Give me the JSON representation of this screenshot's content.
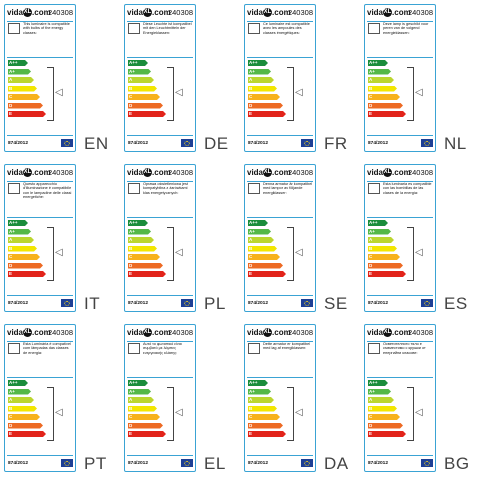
{
  "brand": {
    "name_left": "vida",
    "name_mid": "XL",
    "name_right": ".com"
  },
  "model_number": "240308",
  "regulation": "874/2012",
  "energy_classes": [
    {
      "label": "A++",
      "color": "#1a8d3b"
    },
    {
      "label": "A+",
      "color": "#54b848"
    },
    {
      "label": "A",
      "color": "#bcd62f"
    },
    {
      "label": "B",
      "color": "#f3e600"
    },
    {
      "label": "C",
      "color": "#f7b21b"
    },
    {
      "label": "D",
      "color": "#ed6a23"
    },
    {
      "label": "E",
      "color": "#e2231a"
    }
  ],
  "icons": {
    "lamp": "pendant-lamp-icon",
    "bulb": "bulb-icon",
    "flag": "eu-flag-icon"
  },
  "labels": [
    {
      "lang": "EN",
      "text": "This luminaire is compatible with bulbs of the energy classes:"
    },
    {
      "lang": "DE",
      "text": "Diese Leuchte ist kompatibel mit den Leuchtmitteln der Energieklassen:"
    },
    {
      "lang": "FR",
      "text": "Ce luminaire est compatible avec les ampoules des classes énergétiques:"
    },
    {
      "lang": "NL",
      "text": "Deze lamp is geschikt voor peren van de volgend energieklassen:"
    },
    {
      "lang": "IT",
      "text": "Questo apparecchio d'illuminazione è compatibile con le lampadine delle classi energetiche:"
    },
    {
      "lang": "PL",
      "text": "Oprawa oświetleniowa jest kompatybilna z żarówkami klas energetycznych:"
    },
    {
      "lang": "SE",
      "text": "Denna armatur är kompatibel med lampor av följande energiklasser:"
    },
    {
      "lang": "ES",
      "text": "Esta luminaria es compatible con las bombillas de las clases de la energía:"
    },
    {
      "lang": "PT",
      "text": "Esta Luminária é compatível com lâmpadas das classes de energia:"
    },
    {
      "lang": "EL",
      "text": "Αυτό το φωτιστικό είναι συμβατό με λάμπες ενεργειακής κλάσης:"
    },
    {
      "lang": "DA",
      "text": "Dette armatur er kompatibel med lag af energiklassen:"
    },
    {
      "lang": "BG",
      "text": "Осветителното тяло е съвместимо с крушки от енергийни класове:"
    }
  ]
}
